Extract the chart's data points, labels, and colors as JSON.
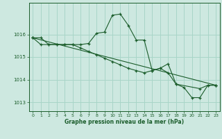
{
  "title": "Graphe pression niveau de la mer (hPa)",
  "background_color": "#cde8e0",
  "grid_color": "#a8d5c8",
  "line_color": "#1a5c2a",
  "xlim": [
    -0.5,
    23.5
  ],
  "ylim": [
    1012.6,
    1017.4
  ],
  "yticks": [
    1013,
    1014,
    1015,
    1016
  ],
  "xticks": [
    0,
    1,
    2,
    3,
    4,
    5,
    6,
    7,
    8,
    9,
    10,
    11,
    12,
    13,
    14,
    15,
    16,
    17,
    18,
    19,
    20,
    21,
    22,
    23
  ],
  "series": [
    {
      "x": [
        0,
        1,
        2,
        3,
        4,
        5,
        6,
        7,
        8,
        9,
        10,
        11,
        12,
        13,
        14,
        15,
        16,
        17,
        18,
        19,
        20,
        21,
        22,
        23
      ],
      "y": [
        1015.85,
        1015.85,
        1015.55,
        1015.55,
        1015.55,
        1015.55,
        1015.55,
        1015.6,
        1016.05,
        1016.1,
        1016.85,
        1016.9,
        1016.4,
        1015.75,
        1015.75,
        1014.4,
        1014.5,
        1014.7,
        1013.8,
        1013.65,
        1013.2,
        1013.2,
        1013.75,
        1013.75
      ]
    },
    {
      "x": [
        0,
        1,
        2,
        3,
        4,
        5,
        6,
        7,
        8,
        9,
        10,
        11,
        12,
        13,
        14,
        15,
        16,
        17,
        18,
        21,
        22,
        23
      ],
      "y": [
        1015.85,
        1015.55,
        1015.55,
        1015.55,
        1015.55,
        1015.55,
        1015.4,
        1015.25,
        1015.1,
        1014.95,
        1014.8,
        1014.65,
        1014.5,
        1014.4,
        1014.3,
        1014.4,
        1014.5,
        1014.3,
        1013.8,
        1013.6,
        1013.75,
        1013.75
      ]
    },
    {
      "x": [
        0,
        23
      ],
      "y": [
        1015.85,
        1013.75
      ]
    }
  ]
}
